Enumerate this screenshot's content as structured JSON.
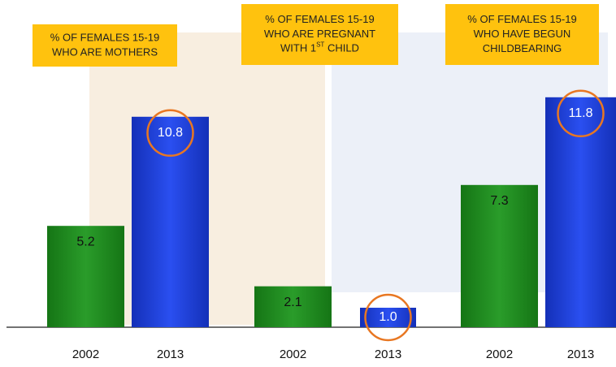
{
  "chart_data": {
    "type": "bar",
    "groups": [
      {
        "title_lines": [
          "% OF FEMALES 15-19",
          "WHO ARE MOTHERS"
        ],
        "categories": [
          "2002",
          "2013"
        ],
        "values": [
          5.2,
          10.8
        ],
        "value_labels": [
          "5.2",
          "10.8"
        ]
      },
      {
        "title_lines": [
          "% OF FEMALES 15-19",
          "WHO ARE PREGNANT",
          [
            "WITH 1",
            "ST",
            " CHILD"
          ]
        ],
        "categories": [
          "2002",
          "2013"
        ],
        "values": [
          2.1,
          1.0
        ],
        "value_labels": [
          "2.1",
          "1.0"
        ]
      },
      {
        "title_lines": [
          "% OF FEMALES 15-19",
          "WHO HAVE BEGUN",
          "CHILDBEARING"
        ],
        "categories": [
          "2002",
          "2013"
        ],
        "values": [
          7.3,
          11.8
        ],
        "value_labels": [
          "7.3",
          "11.8"
        ]
      }
    ],
    "colors": [
      "#1e8c1e",
      "#1c3fd6"
    ]
  }
}
